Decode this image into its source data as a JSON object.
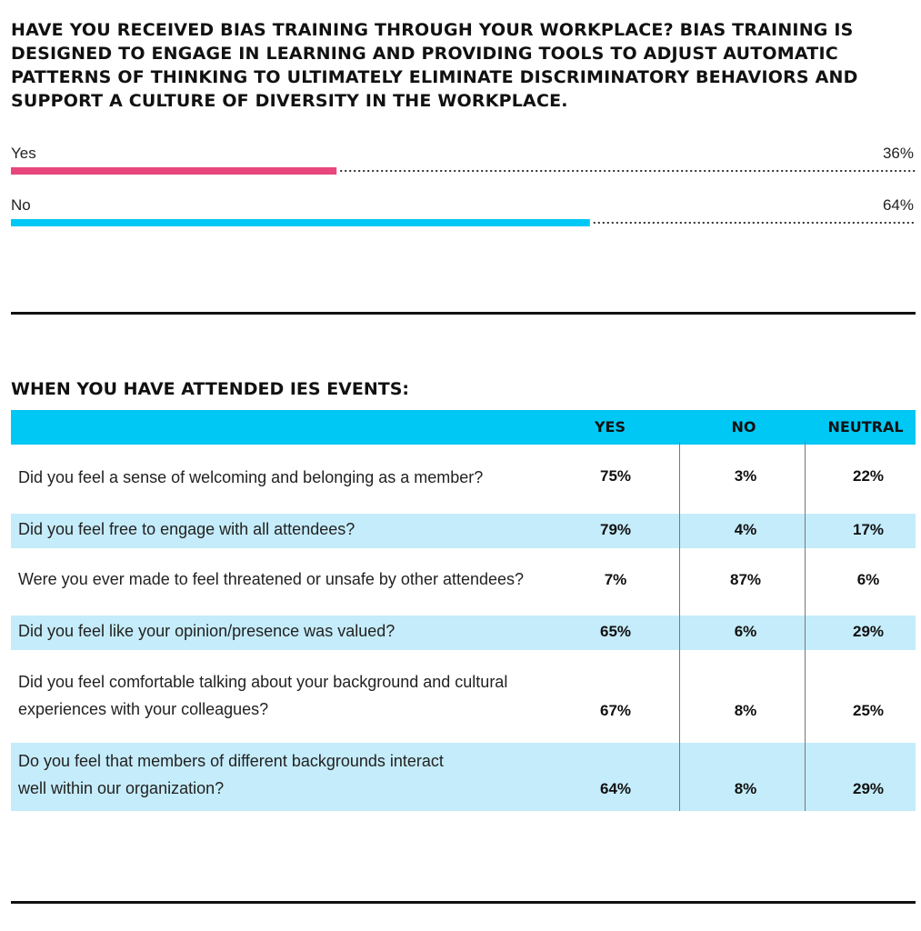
{
  "question_title": "HAVE YOU RECEIVED BIAS TRAINING THROUGH YOUR WORKPLACE? BIAS TRAINING IS DESIGNED TO ENGAGE IN LEARNING AND PROVIDING TOOLS TO ADJUST AUTOMATIC PATTERNS OF THINKING TO ULTIMATELY ELIMINATE DISCRIMINATORY BEHAVIORS AND SUPPORT A CULTURE OF DIVERSITY IN THE WORKPLACE.",
  "chart_data": {
    "type": "bar",
    "orientation": "horizontal",
    "categories": [
      "Yes",
      "No"
    ],
    "values": [
      36,
      64
    ],
    "value_labels": [
      "36%",
      "64%"
    ],
    "xlim": [
      0,
      100
    ],
    "colors": [
      "#e8477e",
      "#00c8f5"
    ],
    "track_style": "dotted"
  },
  "table": {
    "title": "WHEN YOU HAVE ATTENDED IES EVENTS:",
    "columns": [
      "YES",
      "NO",
      "NEUTRAL"
    ],
    "header_color": "#00c8f5",
    "stripe_color": "#c5ecfa",
    "rows": [
      {
        "question": "Did you feel a sense of welcoming and belonging as a member?",
        "yes": "75%",
        "no": "3%",
        "neutral": "22%"
      },
      {
        "question": "Did you feel free to engage with all attendees?",
        "yes": "79%",
        "no": "4%",
        "neutral": "17%"
      },
      {
        "question": "Were you ever made to feel threatened or unsafe by other attendees?",
        "yes": "7%",
        "no": "87%",
        "neutral": "6%"
      },
      {
        "question": "Did you feel like your opinion/presence was valued?",
        "yes": "65%",
        "no": "6%",
        "neutral": "29%"
      },
      {
        "question_lines": [
          "Did you feel comfortable talking about your background and cultural",
          "experiences with your colleagues?"
        ],
        "yes": "67%",
        "no": "8%",
        "neutral": "25%"
      },
      {
        "question_lines": [
          "Do you feel that members of different backgrounds interact",
          "well within our organization?"
        ],
        "yes": "64%",
        "no": "8%",
        "neutral": "29%"
      }
    ]
  }
}
